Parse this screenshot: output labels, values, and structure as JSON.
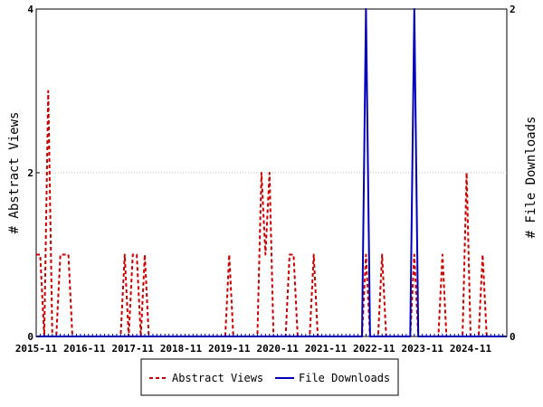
{
  "chart_data": {
    "type": "line",
    "x_tick_labels": [
      "2015-11",
      "2016-11",
      "2017-11",
      "2018-11",
      "2019-11",
      "2020-11",
      "2021-11",
      "2022-11",
      "2023-11",
      "2024-11"
    ],
    "x_start": "2015-11",
    "x_end": "2025-08",
    "y_left": {
      "label": "# Abstract Views",
      "ylim": [
        0,
        4
      ],
      "ticks": [
        "0",
        "2",
        "4"
      ]
    },
    "y_right": {
      "label": "# File Downloads",
      "ylim": [
        0,
        2
      ],
      "ticks": [
        "0",
        "2"
      ]
    },
    "legend_placement": "bottom-center",
    "series": [
      {
        "name": "Abstract Views",
        "axis": "left",
        "color": "#cc0000",
        "style": "dashed",
        "points": [
          [
            "2015-11",
            1
          ],
          [
            "2015-12",
            1
          ],
          [
            "2016-01",
            0
          ],
          [
            "2016-02",
            3
          ],
          [
            "2016-03",
            0
          ],
          [
            "2016-04",
            0
          ],
          [
            "2016-05",
            1
          ],
          [
            "2016-06",
            1
          ],
          [
            "2016-07",
            1
          ],
          [
            "2016-08",
            0
          ],
          [
            "2017-08",
            0
          ],
          [
            "2017-09",
            1
          ],
          [
            "2017-10",
            0
          ],
          [
            "2017-11",
            1
          ],
          [
            "2017-12",
            1
          ],
          [
            "2018-01",
            0
          ],
          [
            "2018-02",
            1
          ],
          [
            "2018-03",
            0
          ],
          [
            "2019-10",
            0
          ],
          [
            "2019-11",
            1
          ],
          [
            "2019-12",
            0
          ],
          [
            "2020-06",
            0
          ],
          [
            "2020-07",
            2
          ],
          [
            "2020-08",
            1
          ],
          [
            "2020-09",
            2
          ],
          [
            "2020-10",
            0
          ],
          [
            "2021-01",
            0
          ],
          [
            "2021-02",
            1
          ],
          [
            "2021-03",
            1
          ],
          [
            "2021-04",
            0
          ],
          [
            "2021-07",
            0
          ],
          [
            "2021-08",
            1
          ],
          [
            "2021-09",
            0
          ],
          [
            "2022-08",
            0
          ],
          [
            "2022-09",
            1
          ],
          [
            "2022-10",
            0
          ],
          [
            "2022-12",
            0
          ],
          [
            "2023-01",
            1
          ],
          [
            "2023-02",
            0
          ],
          [
            "2023-08",
            0
          ],
          [
            "2023-09",
            1
          ],
          [
            "2023-10",
            0
          ],
          [
            "2024-03",
            0
          ],
          [
            "2024-04",
            1
          ],
          [
            "2024-05",
            0
          ],
          [
            "2024-09",
            0
          ],
          [
            "2024-10",
            2
          ],
          [
            "2024-11",
            0
          ],
          [
            "2025-01",
            0
          ],
          [
            "2025-02",
            1
          ],
          [
            "2025-03",
            0
          ],
          [
            "2025-08",
            0
          ]
        ]
      },
      {
        "name": "File Downloads",
        "axis": "right",
        "color": "#0000bb",
        "style": "solid",
        "points": [
          [
            "2015-11",
            0
          ],
          [
            "2022-08",
            0
          ],
          [
            "2022-09",
            2
          ],
          [
            "2022-10",
            0
          ],
          [
            "2023-08",
            0
          ],
          [
            "2023-09",
            2
          ],
          [
            "2023-10",
            0
          ],
          [
            "2025-08",
            0
          ]
        ]
      }
    ]
  }
}
